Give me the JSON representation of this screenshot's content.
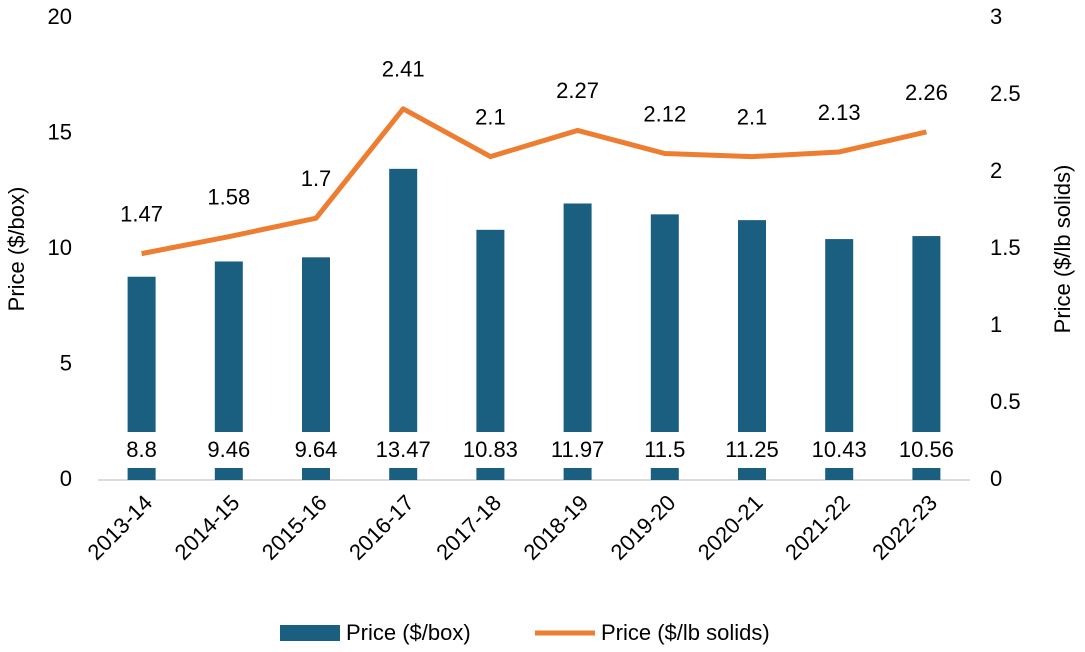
{
  "chart_data": {
    "type": "bar",
    "categories": [
      "2013-14",
      "2014-15",
      "2015-16",
      "2016-17",
      "2017-18",
      "2018-19",
      "2019-20",
      "2020-21",
      "2021-22",
      "2022-23"
    ],
    "series": [
      {
        "name": "Price ($/box)",
        "type": "bar",
        "color": "#1b5f80",
        "values": [
          8.8,
          9.46,
          9.64,
          13.47,
          10.83,
          11.97,
          11.5,
          11.25,
          10.43,
          10.56
        ]
      },
      {
        "name": "Price ($/lb solids)",
        "type": "line",
        "axis": "y2",
        "color": "#ed7d31",
        "values": [
          1.47,
          1.58,
          1.7,
          2.41,
          2.1,
          2.27,
          2.12,
          2.1,
          2.13,
          2.26
        ]
      }
    ],
    "ylabel": "Price ($/box)",
    "y2label": "Price ($/lb solids)",
    "ylim": [
      0,
      20
    ],
    "yticks": [
      0,
      5,
      10,
      15,
      20
    ],
    "y2lim": [
      0,
      3
    ],
    "y2ticks": [
      0,
      0.5,
      1,
      1.5,
      2,
      2.5,
      3
    ],
    "grid": false,
    "legend": "bottom"
  }
}
